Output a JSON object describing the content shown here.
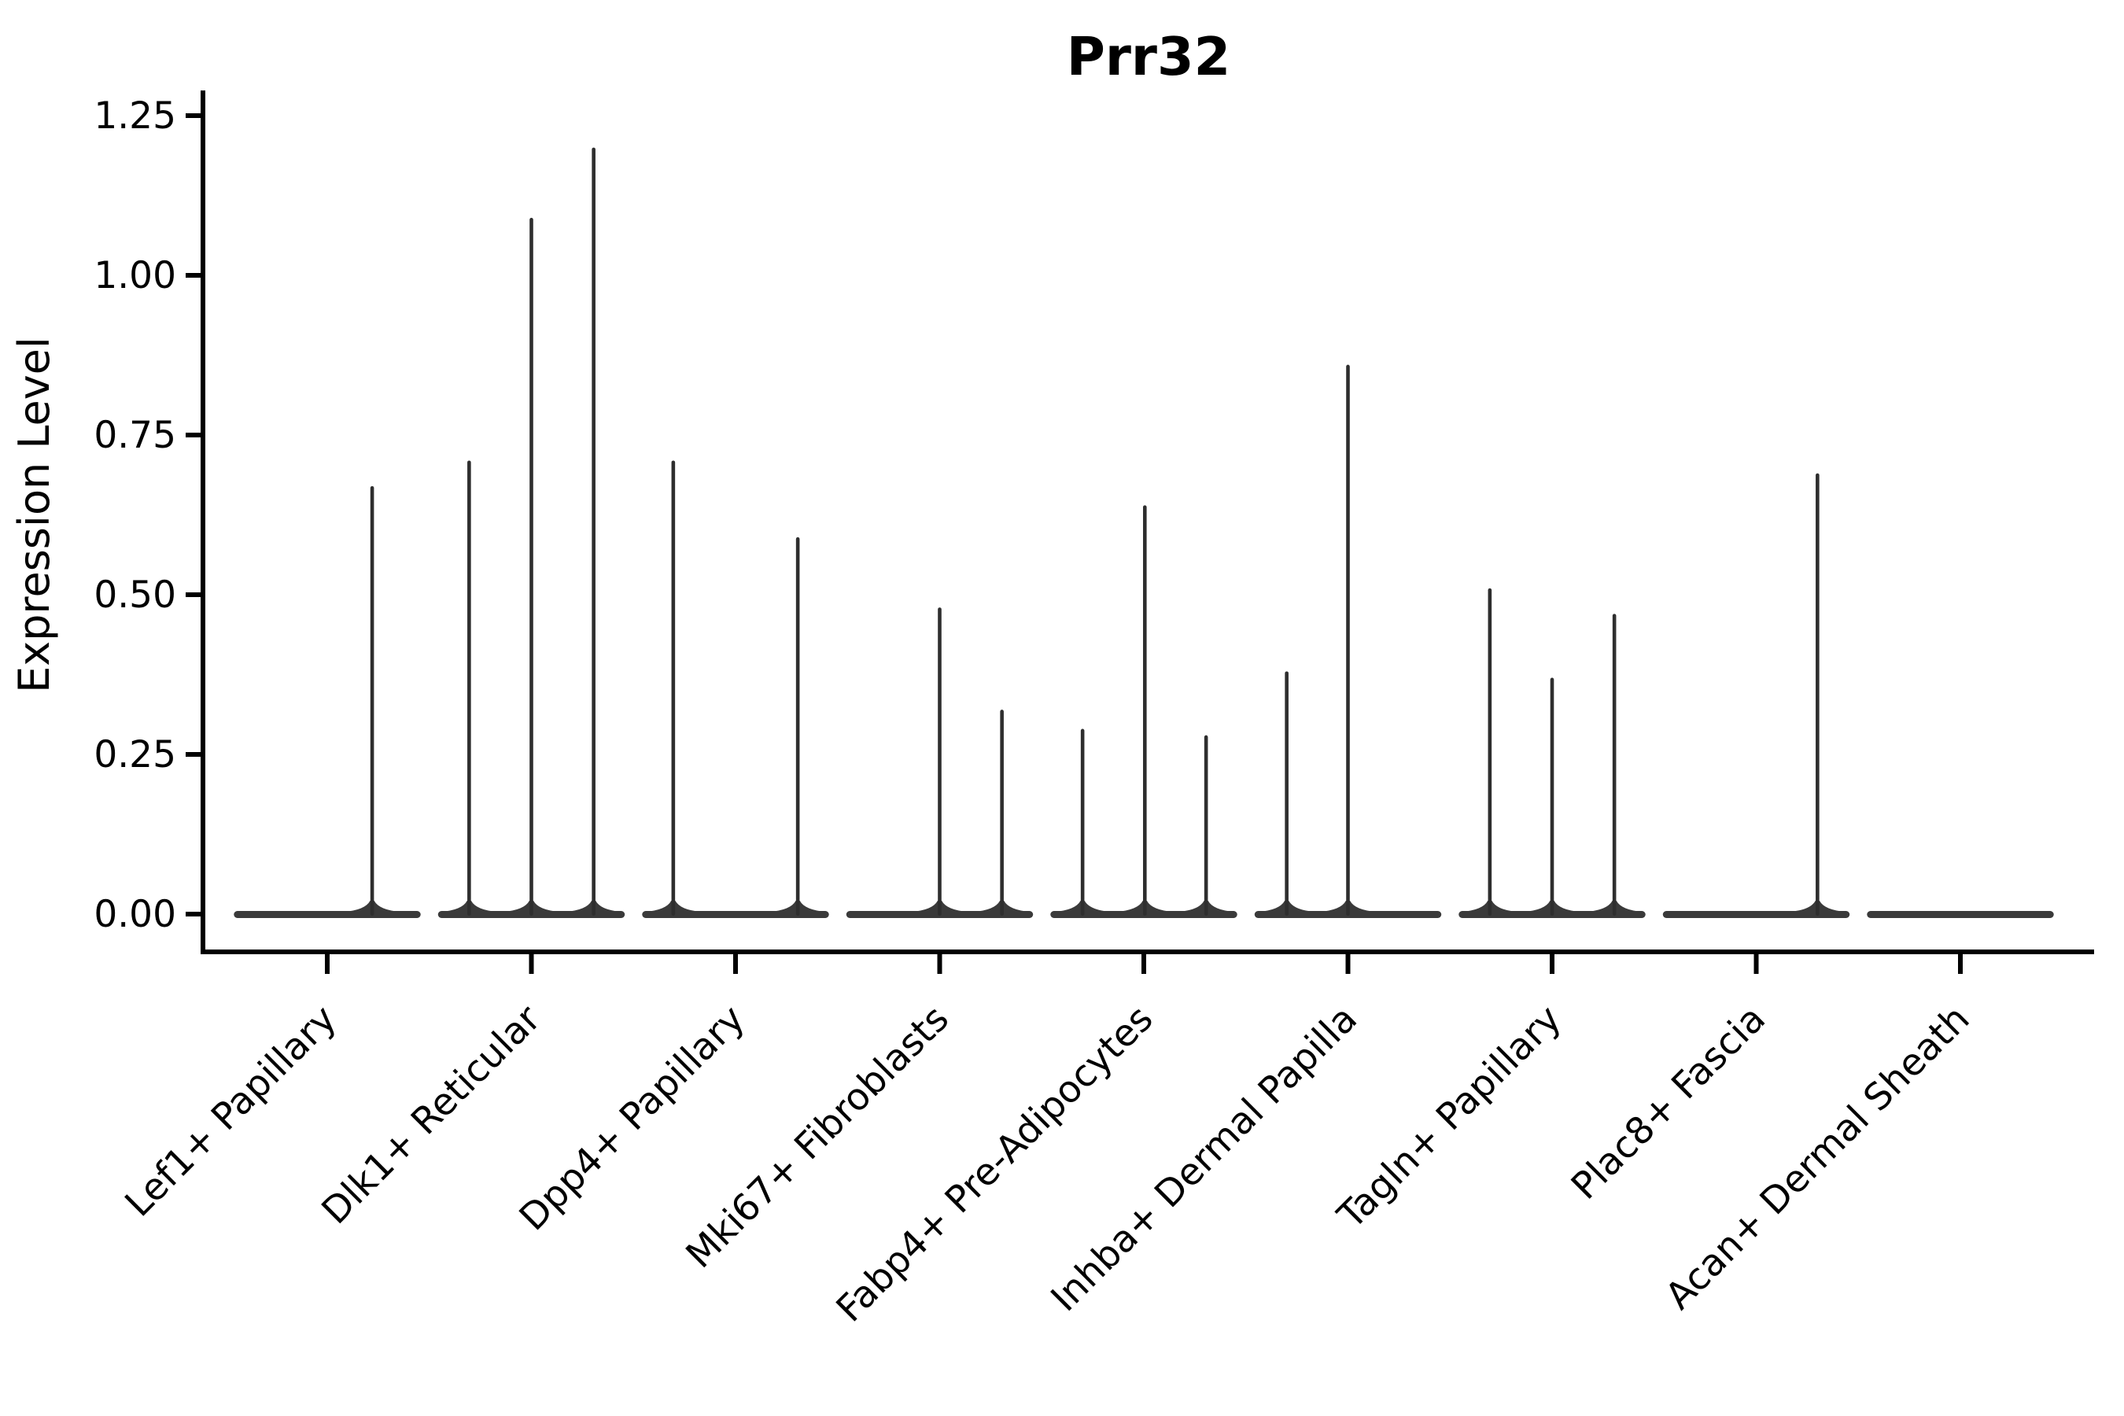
{
  "figure": {
    "title": "Prr32"
  },
  "chart_data": {
    "type": "violin",
    "title": "Prr32",
    "xlabel": "",
    "ylabel": "Expression Level",
    "yticks": {
      "values": [
        0,
        0.25,
        0.5,
        0.75,
        1.0,
        1.25
      ],
      "labels": [
        "0.00",
        "0.25",
        "0.50",
        "0.75",
        "1.00",
        "1.25"
      ]
    },
    "ylim": [
      -0.059,
      1.29
    ],
    "grid": false,
    "legend": "none",
    "x_tick_rotation": 45,
    "categories": [
      "Lef1+ Papillary",
      "Dlk1+ Reticular",
      "Dpp4+ Papillary",
      "Mki67+ Fibroblasts",
      "Fabp4+ Pre-Adipocytes",
      "Inhba+ Dermal Papilla",
      "Tagln+ Papillary",
      "Plac8+ Fascia",
      "Acan+ Dermal Sheath"
    ],
    "violins": [
      {
        "category": "Lef1+ Papillary",
        "baseline_value": 0,
        "body_width_frac": 0.915,
        "spikes": [
          {
            "offset_frac": 0.22,
            "max_value": 0.67
          }
        ]
      },
      {
        "category": "Dlk1+ Reticular",
        "baseline_value": 0,
        "body_width_frac": 0.915,
        "spikes": [
          {
            "offset_frac": -0.305,
            "max_value": 0.71
          },
          {
            "offset_frac": 0.0,
            "max_value": 1.09
          },
          {
            "offset_frac": 0.305,
            "max_value": 1.2
          }
        ]
      },
      {
        "category": "Dpp4+ Papillary",
        "baseline_value": 0,
        "body_width_frac": 0.915,
        "spikes": [
          {
            "offset_frac": -0.305,
            "max_value": 0.71
          },
          {
            "offset_frac": 0.305,
            "max_value": 0.59
          }
        ]
      },
      {
        "category": "Mki67+ Fibroblasts",
        "baseline_value": 0,
        "body_width_frac": 0.915,
        "spikes": [
          {
            "offset_frac": 0.0,
            "max_value": 0.48
          },
          {
            "offset_frac": 0.305,
            "max_value": 0.32
          }
        ]
      },
      {
        "category": "Fabp4+ Pre-Adipocytes",
        "baseline_value": 0,
        "body_width_frac": 0.915,
        "spikes": [
          {
            "offset_frac": -0.3,
            "max_value": 0.29
          },
          {
            "offset_frac": 0.005,
            "max_value": 0.64
          },
          {
            "offset_frac": 0.305,
            "max_value": 0.28
          }
        ]
      },
      {
        "category": "Inhba+ Dermal Papilla",
        "baseline_value": 0,
        "body_width_frac": 0.915,
        "spikes": [
          {
            "offset_frac": -0.3,
            "max_value": 0.38
          },
          {
            "offset_frac": 0.0,
            "max_value": 0.86
          }
        ]
      },
      {
        "category": "Tagln+ Papillary",
        "baseline_value": 0,
        "body_width_frac": 0.915,
        "spikes": [
          {
            "offset_frac": -0.305,
            "max_value": 0.51
          },
          {
            "offset_frac": 0.0,
            "max_value": 0.37
          },
          {
            "offset_frac": 0.305,
            "max_value": 0.47
          }
        ]
      },
      {
        "category": "Plac8+ Fascia",
        "baseline_value": 0,
        "body_width_frac": 0.915,
        "spikes": [
          {
            "offset_frac": 0.3,
            "max_value": 0.69
          }
        ]
      },
      {
        "category": "Acan+ Dermal Sheath",
        "baseline_value": 0,
        "body_width_frac": 0.915,
        "spikes": []
      }
    ],
    "colors": {
      "background": "#ffffff",
      "axis": "#000000",
      "text": "#000000",
      "violin_body": "#3a3a3a",
      "violin_spike": "#2e2e2e"
    }
  }
}
